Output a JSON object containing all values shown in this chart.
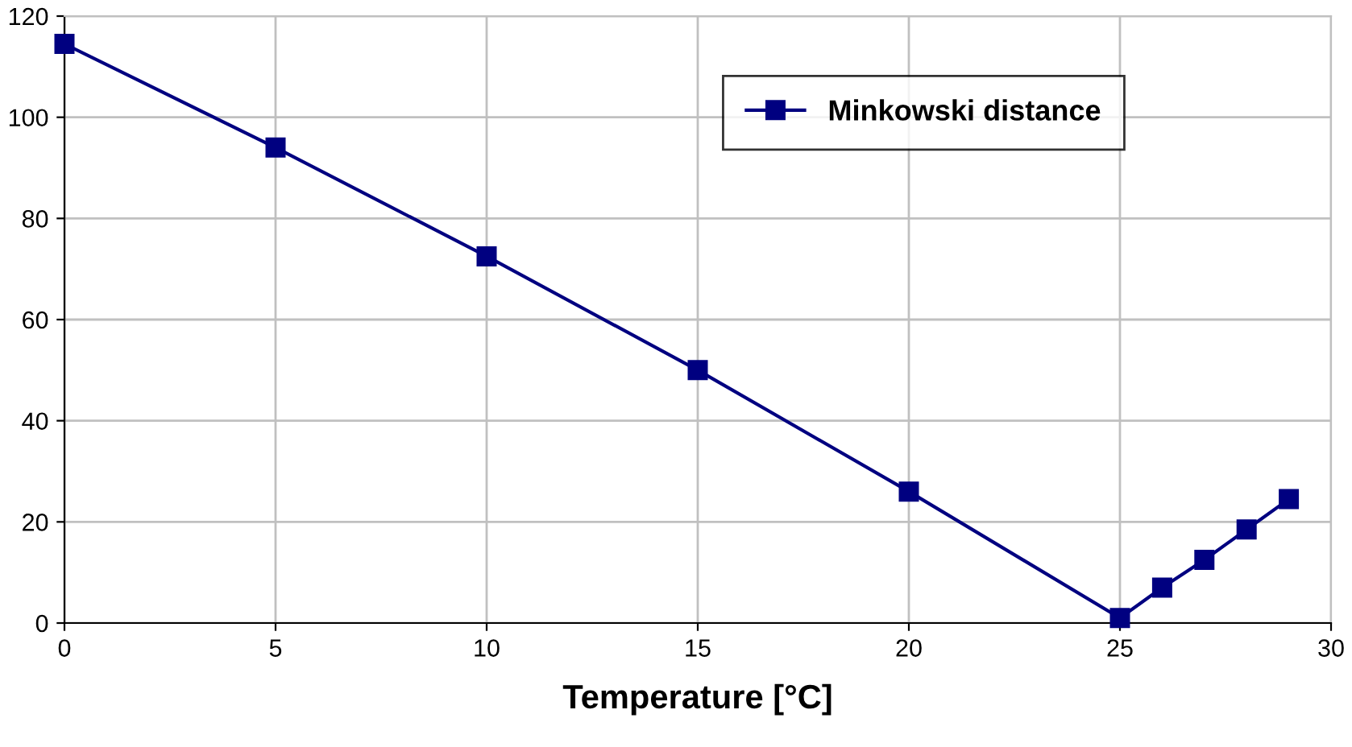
{
  "chart_data": {
    "type": "line",
    "xlabel": "Temperature [°C]",
    "x": [
      0,
      5,
      10,
      15,
      20,
      25,
      26,
      27,
      28,
      29
    ],
    "series": [
      {
        "name": "Minkowski distance",
        "color": "#000080",
        "values": [
          114.5,
          94,
          72.5,
          50,
          26,
          1,
          7,
          12.5,
          18.5,
          24.5
        ]
      }
    ],
    "xlim": [
      0,
      30
    ],
    "xticks": [
      0,
      5,
      10,
      15,
      20,
      25,
      30
    ],
    "ylim": [
      0,
      120
    ],
    "yticks": [
      0,
      20,
      40,
      60,
      80,
      100,
      120
    ],
    "grid": true,
    "legend": "top right",
    "marker": "square",
    "line_style": "solid"
  }
}
